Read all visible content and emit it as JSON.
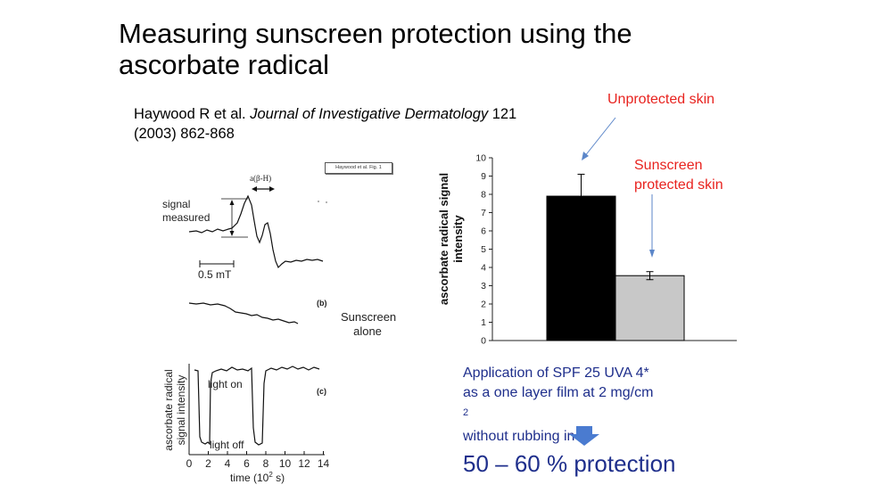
{
  "slide": {
    "title_line1": "Measuring sunscreen protection using the",
    "title_line2": "ascorbate radical",
    "citation_authors": "Haywood R et al. ",
    "citation_journal": "Journal of Investigative Dermatology",
    "citation_vol": " 121",
    "citation_pages": "(2003) 862-868",
    "fig_tag": "Haywood et al. Fig. 1"
  },
  "epr_panels": {
    "signal_measured_line1": "signal",
    "signal_measured_line2": "measured",
    "alpha_label": "a(β-H)",
    "scale_label": "0.5 mT",
    "panel_b": "(b)",
    "panel_c": "(c)",
    "sunscreen_alone_line1": "Sunscreen",
    "sunscreen_alone_line2": "alone",
    "light_on": "light on",
    "light_off": "light off",
    "ylabel_line1": "ascorbate radical",
    "ylabel_line2": "signal intensity",
    "xlabel": "time (10",
    "xlabel_sup": "2",
    "xlabel_end": " s)",
    "x_ticks": [
      "0",
      "2",
      "4",
      "6",
      "8",
      "10",
      "12",
      "14"
    ]
  },
  "chart_data": {
    "type": "bar",
    "categories": [
      "Unprotected skin",
      "Sunscreen protected skin"
    ],
    "values": [
      7.9,
      3.55
    ],
    "errors": [
      1.2,
      0.22
    ],
    "colors": [
      "#000000",
      "#c8c8c8"
    ],
    "ylabel_line1": "ascorbate radical signal",
    "ylabel_line2": "intensity",
    "ylim": [
      0,
      10
    ],
    "y_ticks": [
      "0",
      "1",
      "2",
      "3",
      "4",
      "5",
      "6",
      "7",
      "8",
      "9",
      "10"
    ],
    "annot_unprotected": "Unprotected skin",
    "annot_sunscreen_line1": "Sunscreen",
    "annot_sunscreen_line2": "protected skin"
  },
  "application": {
    "line1": "Application of SPF 25 UVA 4*",
    "line2": "as a one layer film at 2 mg/cm",
    "line2_sup": "2",
    "line3": "without rubbing in"
  },
  "result": "50 – 60 % protection",
  "colors": {
    "accent_red": "#e8231f",
    "navy": "#1f2f8c",
    "arrow_blue": "#4a7bd0"
  }
}
